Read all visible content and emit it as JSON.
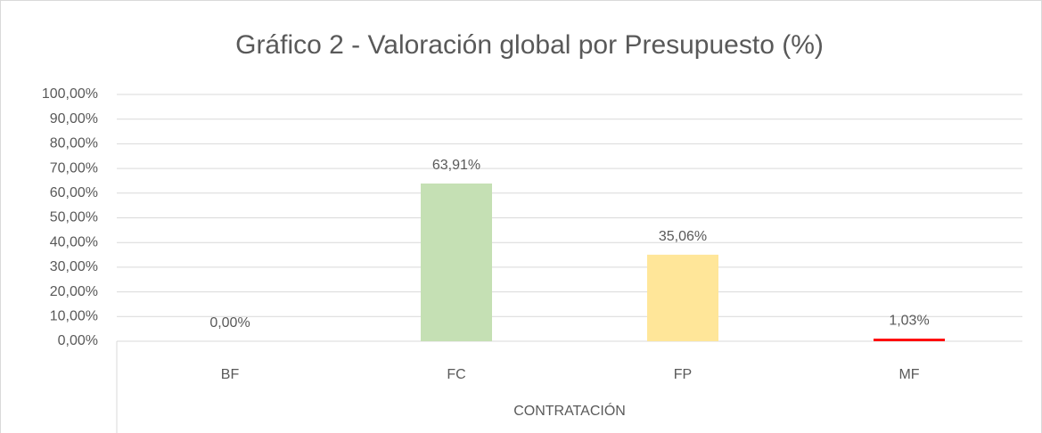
{
  "chart_data": {
    "type": "bar",
    "title": "Gráfico 2 - Valoración global por Presupuesto (%)",
    "x_label": "CONTRATACIÓN",
    "categories": [
      "BF",
      "FC",
      "FP",
      "MF"
    ],
    "values": [
      0,
      63.91,
      35.06,
      1.03
    ],
    "value_labels": [
      "0,00%",
      "63,91%",
      "35,06%",
      "1,03%"
    ],
    "colors": [
      "#5b9bd5",
      "#c5e0b4",
      "#ffe699",
      "#ff0000"
    ],
    "ylim": [
      0,
      100
    ],
    "yticks": [
      {
        "value": 0,
        "label": "0,00%"
      },
      {
        "value": 10,
        "label": "10,00%"
      },
      {
        "value": 20,
        "label": "20,00%"
      },
      {
        "value": 30,
        "label": "30,00%"
      },
      {
        "value": 40,
        "label": "40,00%"
      },
      {
        "value": 50,
        "label": "50,00%"
      },
      {
        "value": 60,
        "label": "60,00%"
      },
      {
        "value": 70,
        "label": "70,00%"
      },
      {
        "value": 80,
        "label": "80,00%"
      },
      {
        "value": 90,
        "label": "90,00%"
      },
      {
        "value": 100,
        "label": "100,00%"
      }
    ],
    "grid": true
  }
}
